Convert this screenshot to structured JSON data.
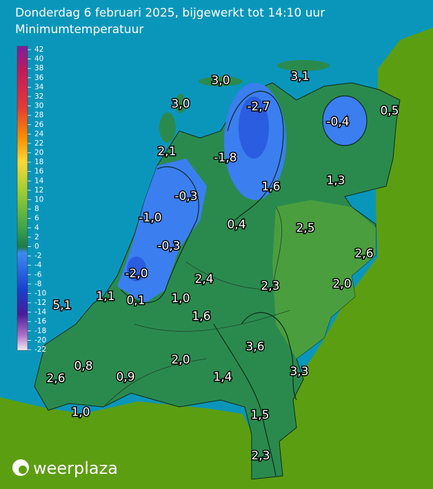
{
  "header": {
    "title": "Donderdag 6 februari 2025, bijgewerkt tot 14:10 uur",
    "subtitle": "Minimumtemperatuur"
  },
  "legend": {
    "labels": [
      "42",
      "40",
      "38",
      "36",
      "34",
      "32",
      "30",
      "28",
      "26",
      "24",
      "22",
      "20",
      "18",
      "16",
      "14",
      "12",
      "10",
      "8",
      "6",
      "4",
      "2",
      "0",
      "-2",
      "-4",
      "-6",
      "-8",
      "-10",
      "-12",
      "-14",
      "-16",
      "-18",
      "-20",
      "-22"
    ]
  },
  "stations": [
    "3,0",
    "3,1",
    "3,0",
    "-2,7",
    "0,5",
    "-0,4",
    "2,1",
    "-1,8",
    "1,6",
    "1,3",
    "-0,3",
    "-1,0",
    "0,4",
    "2,5",
    "-0,3",
    "2,6",
    "-2,0",
    "2,4",
    "2,3",
    "2,0",
    "1,1",
    "5,1",
    "0,1",
    "1,0",
    "1,6",
    "3,6",
    "0,8",
    "2,0",
    "3,3",
    "2,6",
    "0,9",
    "1,4",
    "1,0",
    "1,5",
    "2,3"
  ],
  "brand": "weerplaza"
}
